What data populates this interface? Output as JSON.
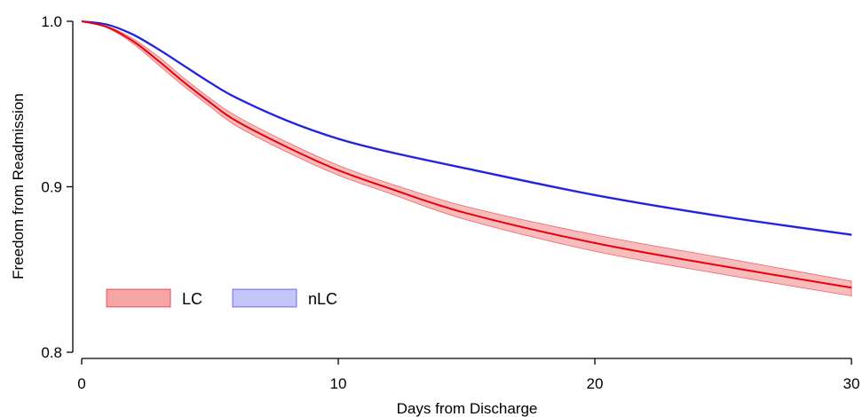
{
  "chart_data": {
    "type": "line",
    "xlabel": "Days from Discharge",
    "ylabel": "Freedom from Readmission",
    "xlim": [
      0,
      30
    ],
    "ylim": [
      0.8,
      1.0
    ],
    "x_ticks": [
      0,
      10,
      20,
      30
    ],
    "x_tick_labels": [
      "0",
      "10",
      "20",
      "30"
    ],
    "y_ticks": [
      0.8,
      0.9,
      1.0
    ],
    "y_tick_labels": [
      "0.8",
      "0.9",
      "1.0"
    ],
    "grid": false,
    "legend_position": "lower-left",
    "x": [
      0,
      1,
      2,
      3,
      4,
      5,
      6,
      8,
      10,
      12,
      15,
      20,
      25,
      30
    ],
    "series": [
      {
        "name": "LC",
        "color": "#e8000b",
        "band_color": "#f4a6a6",
        "values": [
          1.0,
          0.9965,
          0.988,
          0.976,
          0.963,
          0.951,
          0.94,
          0.924,
          0.91,
          0.899,
          0.884,
          0.866,
          0.852,
          0.839
        ],
        "lower": [
          1.0,
          0.996,
          0.9865,
          0.9735,
          0.9605,
          0.9485,
          0.937,
          0.921,
          0.907,
          0.896,
          0.88,
          0.861,
          0.847,
          0.834
        ],
        "upper": [
          1.0,
          0.997,
          0.9895,
          0.9785,
          0.9655,
          0.9535,
          0.943,
          0.927,
          0.913,
          0.902,
          0.888,
          0.871,
          0.857,
          0.843
        ]
      },
      {
        "name": "nLC",
        "color": "#1f1fe0",
        "band_color": "#c4c4f7",
        "values": [
          1.0,
          0.998,
          0.992,
          0.983,
          0.973,
          0.963,
          0.954,
          0.94,
          0.929,
          0.921,
          0.911,
          0.895,
          0.882,
          0.871
        ],
        "lower": [
          1.0,
          0.9978,
          0.9915,
          0.9825,
          0.9725,
          0.9625,
          0.9535,
          0.9395,
          0.9285,
          0.9205,
          0.9105,
          0.8945,
          0.8815,
          0.8705
        ],
        "upper": [
          1.0,
          0.9982,
          0.9925,
          0.9835,
          0.9735,
          0.9635,
          0.9545,
          0.9405,
          0.9295,
          0.9215,
          0.9115,
          0.8955,
          0.8825,
          0.8715
        ]
      }
    ]
  }
}
